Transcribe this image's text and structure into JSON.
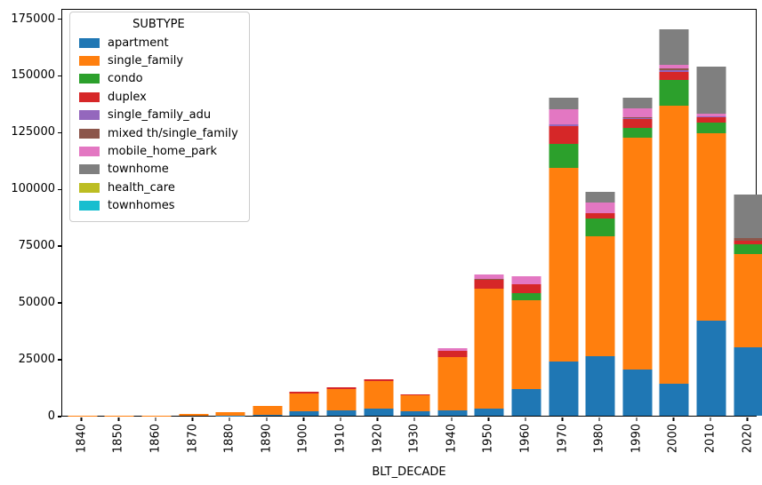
{
  "figure": {
    "xlabel": "BLT_DECADE",
    "background": "#ffffff",
    "axis_color": "#000000"
  },
  "legend": {
    "title": "SUBTYPE",
    "position": "upper left"
  },
  "chart_data": {
    "type": "bar",
    "stacked": true,
    "title": "",
    "xlabel": "BLT_DECADE",
    "ylabel": "",
    "grid": false,
    "legend_title": "SUBTYPE",
    "legend_position": "upper left",
    "categories": [
      "1840",
      "1850",
      "1860",
      "1870",
      "1880",
      "1890",
      "1900",
      "1910",
      "1920",
      "1930",
      "1940",
      "1950",
      "1960",
      "1970",
      "1980",
      "1990",
      "2000",
      "2010",
      "2020"
    ],
    "yticks": [
      0,
      25000,
      50000,
      75000,
      100000,
      125000,
      150000,
      175000
    ],
    "ylim": [
      0,
      179500
    ],
    "series": [
      {
        "name": "apartment",
        "color": "#1f77b4",
        "values": [
          0,
          0,
          0,
          0,
          100,
          400,
          2000,
          2500,
          3000,
          1800,
          2300,
          3000,
          11600,
          24000,
          26500,
          20500,
          14300,
          42000,
          30300
        ]
      },
      {
        "name": "single_family",
        "color": "#ff7f0e",
        "values": [
          50,
          100,
          200,
          600,
          1500,
          4000,
          8000,
          9400,
          12300,
          7200,
          23500,
          53300,
          39600,
          85500,
          53000,
          102400,
          122900,
          83000,
          41000
        ]
      },
      {
        "name": "condo",
        "color": "#2ca02c",
        "values": [
          0,
          0,
          0,
          0,
          0,
          0,
          0,
          0,
          0,
          0,
          0,
          0,
          3200,
          10800,
          7800,
          4300,
          11100,
          4700,
          4600
        ]
      },
      {
        "name": "duplex",
        "color": "#d62728",
        "values": [
          0,
          0,
          0,
          0,
          0,
          0,
          500,
          500,
          1000,
          500,
          2900,
          3700,
          3900,
          7800,
          2200,
          3900,
          3900,
          2200,
          1500
        ]
      },
      {
        "name": "single_family_adu",
        "color": "#9467bd",
        "values": [
          0,
          0,
          0,
          0,
          0,
          0,
          0,
          0,
          0,
          0,
          0,
          0,
          0,
          900,
          0,
          400,
          500,
          400,
          0
        ]
      },
      {
        "name": "mixed th/single_family",
        "color": "#8c564b",
        "values": [
          0,
          0,
          0,
          0,
          0,
          0,
          0,
          0,
          0,
          0,
          0,
          700,
          0,
          0,
          0,
          400,
          1000,
          0,
          1100
        ]
      },
      {
        "name": "mobile_home_park",
        "color": "#e377c2",
        "values": [
          0,
          0,
          0,
          0,
          0,
          0,
          300,
          300,
          0,
          0,
          1000,
          1600,
          3200,
          6500,
          4700,
          3900,
          1550,
          1300,
          0
        ]
      },
      {
        "name": "townhome",
        "color": "#7f7f7f",
        "values": [
          0,
          0,
          0,
          0,
          0,
          0,
          0,
          0,
          0,
          0,
          0,
          0,
          0,
          5000,
          4800,
          5000,
          15600,
          20600,
          19500
        ]
      },
      {
        "name": "health_care",
        "color": "#bcbd22",
        "values": [
          0,
          0,
          0,
          0,
          0,
          0,
          0,
          0,
          0,
          0,
          0,
          0,
          0,
          0,
          0,
          0,
          100,
          0,
          0
        ]
      },
      {
        "name": "townhomes",
        "color": "#17becf",
        "values": [
          0,
          0,
          0,
          0,
          0,
          0,
          0,
          0,
          0,
          0,
          0,
          0,
          0,
          0,
          0,
          0,
          50,
          0,
          0
        ]
      }
    ]
  }
}
